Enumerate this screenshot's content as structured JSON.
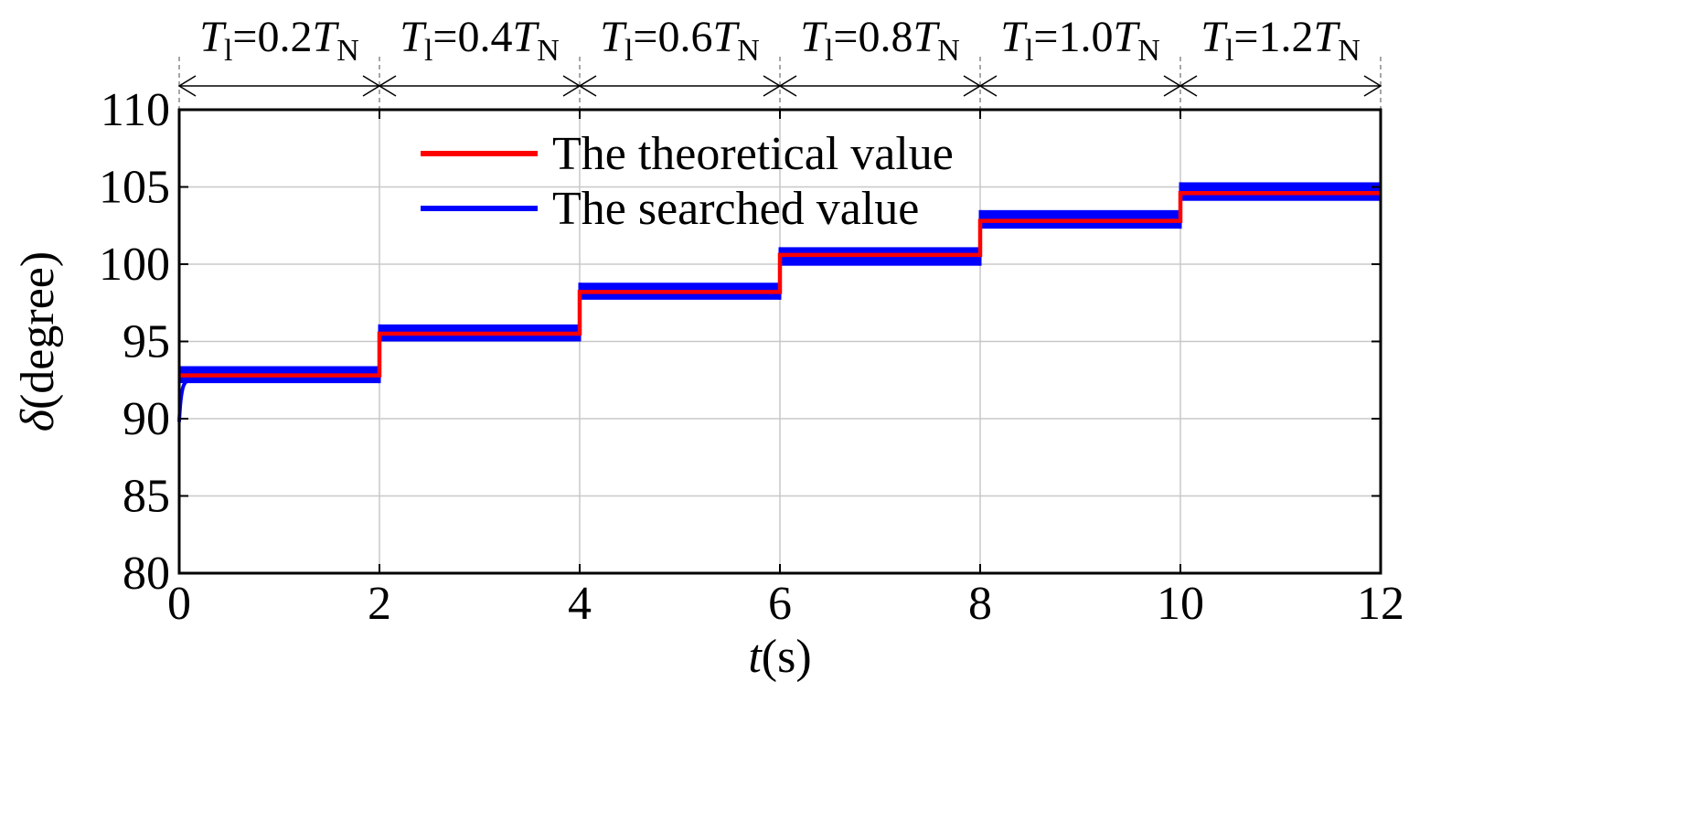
{
  "chart_data": {
    "type": "line",
    "title": "",
    "xlabel": {
      "italic": "t",
      "rest": "(s)"
    },
    "ylabel": {
      "italic": "δ",
      "rest": "(degree)"
    },
    "xlim": [
      0,
      12
    ],
    "ylim": [
      80,
      110
    ],
    "xticks": [
      0,
      2,
      4,
      6,
      8,
      10,
      12
    ],
    "yticks": [
      80,
      85,
      90,
      95,
      100,
      105,
      110
    ],
    "grid": true,
    "legend_position": "top-center",
    "colors": {
      "theoretical": "#ff0000",
      "searched": "#0000ff"
    },
    "series": [
      {
        "name": "The theoretical value",
        "color": "#ff0000",
        "steps": [
          {
            "x0": 0,
            "x1": 2,
            "y": 92.8
          },
          {
            "x0": 2,
            "x1": 4,
            "y": 95.5
          },
          {
            "x0": 4,
            "x1": 6,
            "y": 98.2
          },
          {
            "x0": 6,
            "x1": 8,
            "y": 100.6
          },
          {
            "x0": 8,
            "x1": 10,
            "y": 102.8
          },
          {
            "x0": 10,
            "x1": 12,
            "y": 104.6
          }
        ]
      },
      {
        "name": "The searched value",
        "color": "#0000ff",
        "start_value": 89.8,
        "bands": [
          {
            "x0": 0,
            "x1": 2,
            "low": 92.3,
            "high": 93.4
          },
          {
            "x0": 2,
            "x1": 4,
            "low": 95.0,
            "high": 96.1
          },
          {
            "x0": 4,
            "x1": 6,
            "low": 97.7,
            "high": 98.8
          },
          {
            "x0": 6,
            "x1": 8,
            "low": 99.9,
            "high": 101.1
          },
          {
            "x0": 8,
            "x1": 10,
            "low": 102.3,
            "high": 103.5
          },
          {
            "x0": 10,
            "x1": 12,
            "low": 104.1,
            "high": 105.3
          }
        ]
      }
    ],
    "annotations": [
      {
        "x0": 0,
        "x1": 2,
        "sym": "T",
        "sub1": "l",
        "eq": "=0.2",
        "sym2": "T",
        "sub2": "N"
      },
      {
        "x0": 2,
        "x1": 4,
        "sym": "T",
        "sub1": "l",
        "eq": "=0.4",
        "sym2": "T",
        "sub2": "N"
      },
      {
        "x0": 4,
        "x1": 6,
        "sym": "T",
        "sub1": "l",
        "eq": "=0.6",
        "sym2": "T",
        "sub2": "N"
      },
      {
        "x0": 6,
        "x1": 8,
        "sym": "T",
        "sub1": "l",
        "eq": "=0.8",
        "sym2": "T",
        "sub2": "N"
      },
      {
        "x0": 8,
        "x1": 10,
        "sym": "T",
        "sub1": "l",
        "eq": "=1.0",
        "sym2": "T",
        "sub2": "N"
      },
      {
        "x0": 10,
        "x1": 12,
        "sym": "T",
        "sub1": "l",
        "eq": "=1.2",
        "sym2": "T",
        "sub2": "N"
      }
    ]
  }
}
